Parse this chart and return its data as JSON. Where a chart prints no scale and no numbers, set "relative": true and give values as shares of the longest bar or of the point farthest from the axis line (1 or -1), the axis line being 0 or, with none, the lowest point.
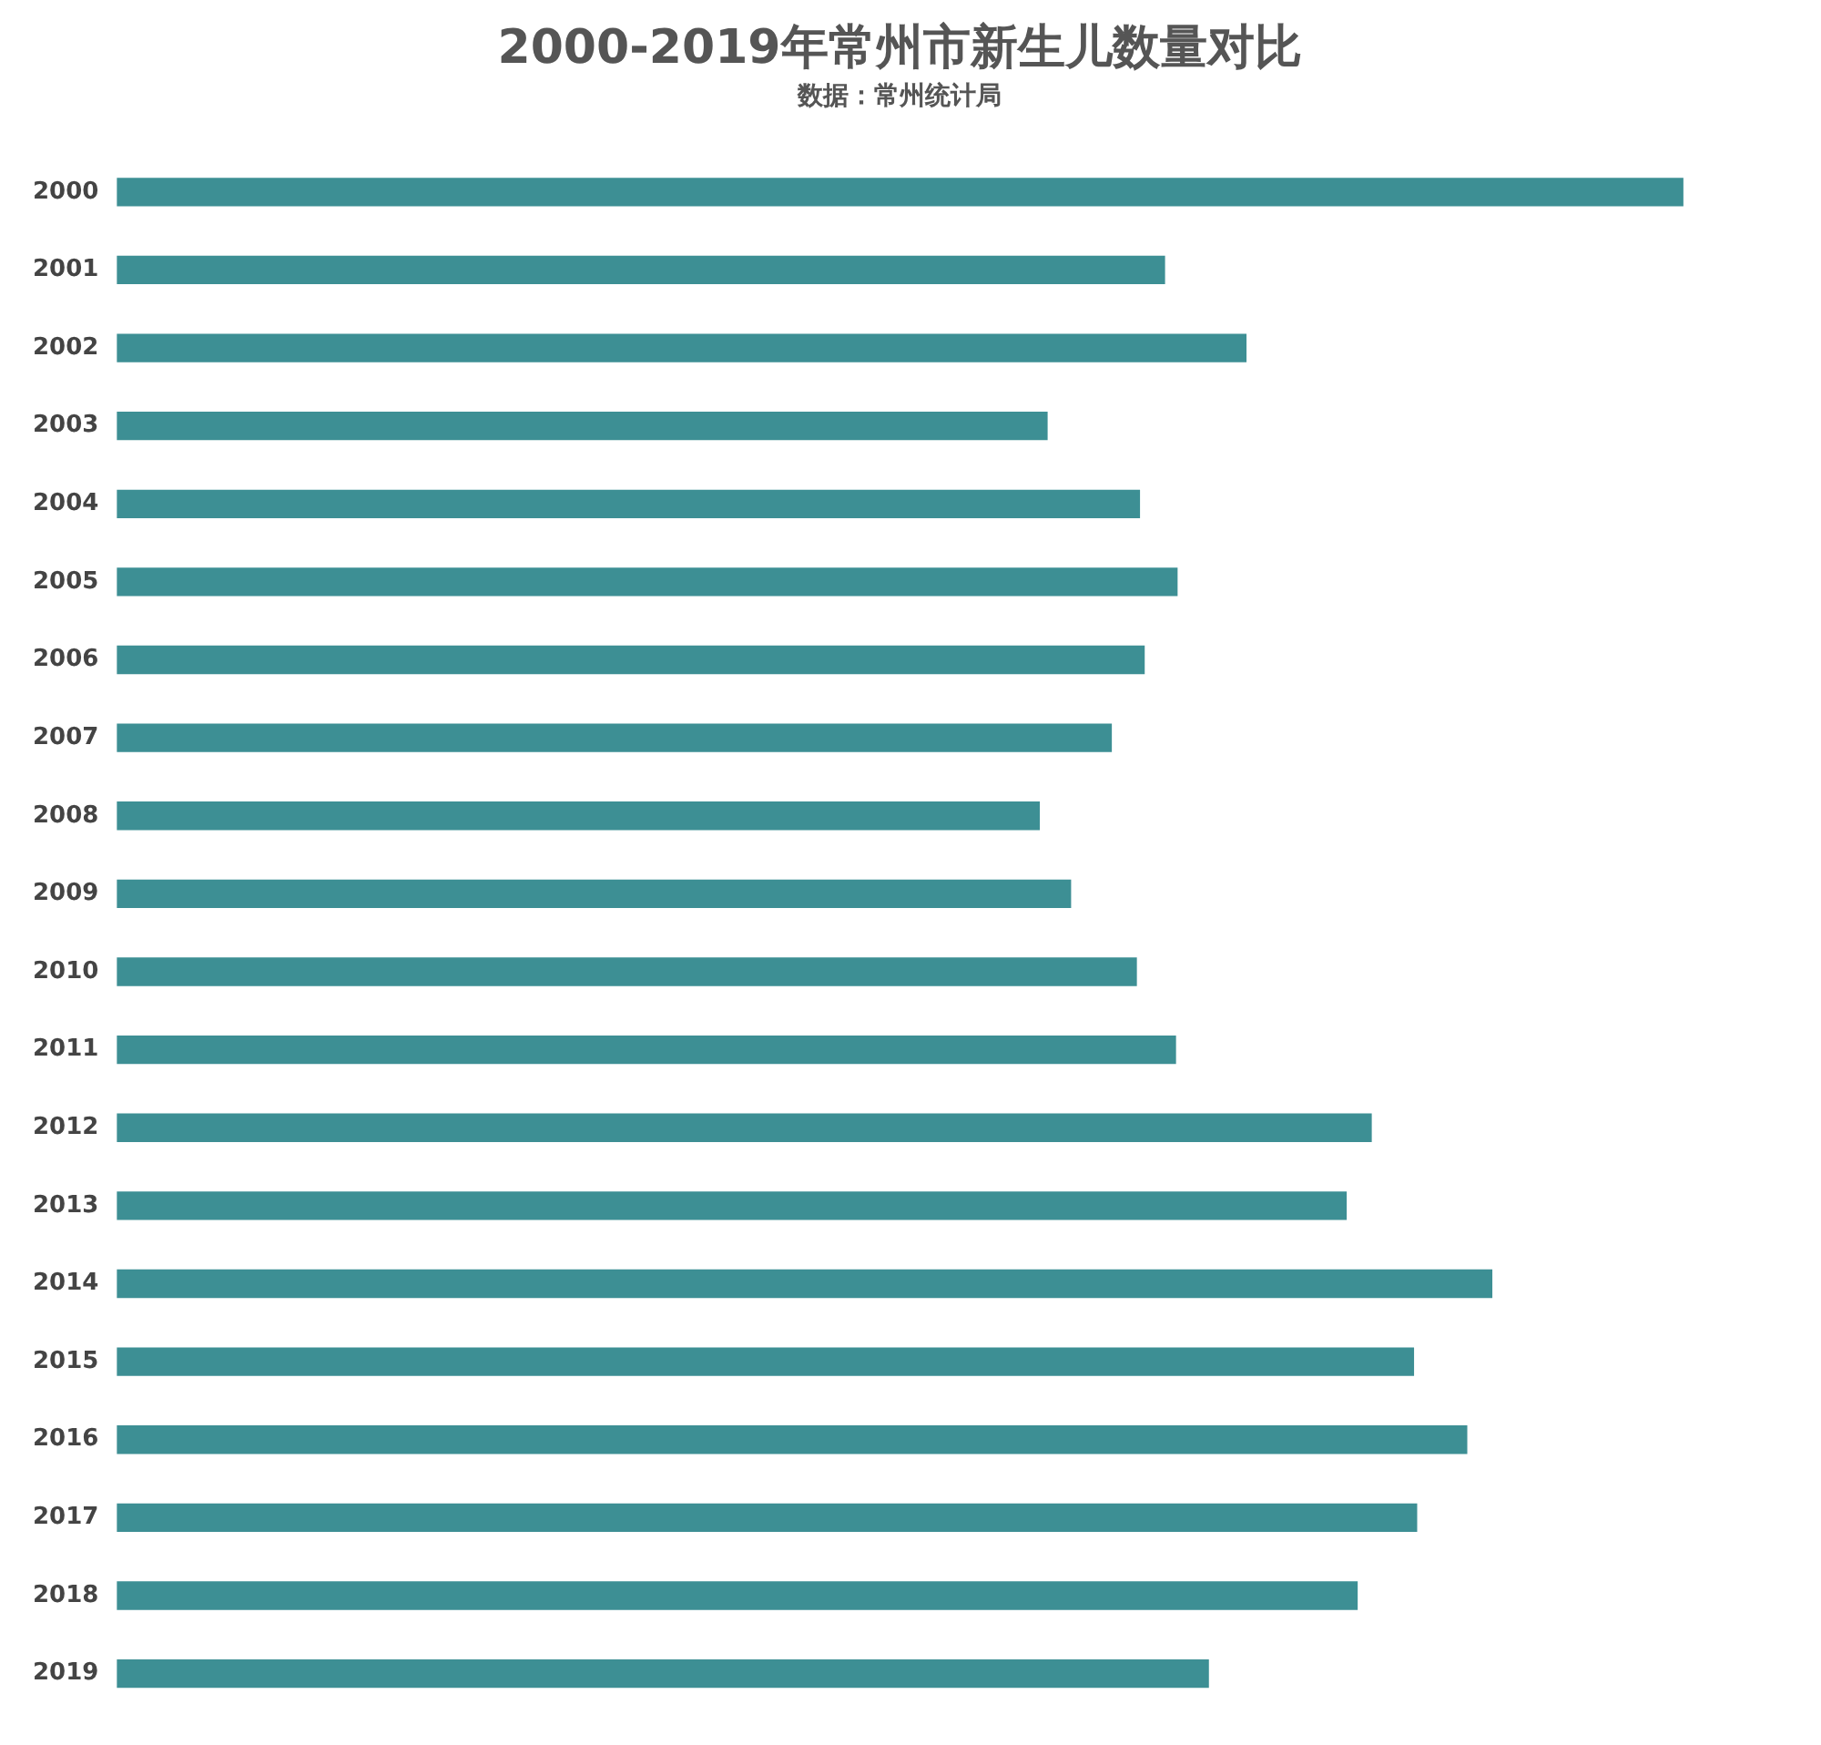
{
  "chart_data": {
    "type": "bar",
    "orientation": "horizontal",
    "relative": true,
    "title": "2000-2019年常州市新生儿数量对比",
    "subtitle": "数据：常州统计局",
    "categories": [
      "2000",
      "2001",
      "2002",
      "2003",
      "2004",
      "2005",
      "2006",
      "2007",
      "2008",
      "2009",
      "2010",
      "2011",
      "2012",
      "2013",
      "2014",
      "2015",
      "2016",
      "2017",
      "2018",
      "2019"
    ],
    "values": [
      1,
      0.669,
      0.721,
      0.594,
      0.653,
      0.677,
      0.656,
      0.635,
      0.589,
      0.609,
      0.651,
      0.676,
      0.801,
      0.785,
      0.878,
      0.828,
      0.862,
      0.83,
      0.792,
      0.697
    ],
    "color": "#3d8f94",
    "grid": false,
    "legend": false
  }
}
